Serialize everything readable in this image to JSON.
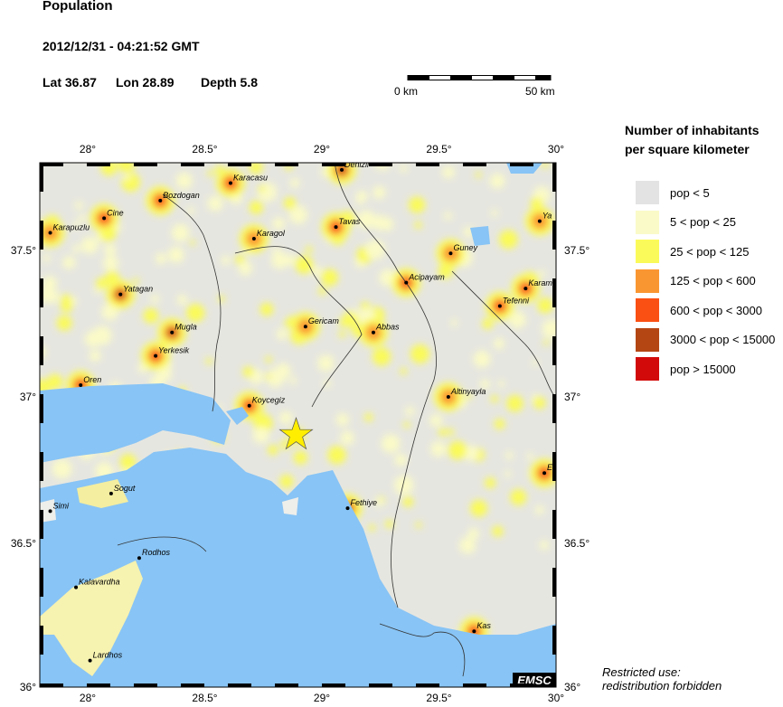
{
  "header": {
    "title": "Population",
    "datetime": "2012/12/31 - 04:21:52 GMT",
    "lat_label": "Lat 36.87",
    "lon_label": "Lon  28.89",
    "depth_label": "Depth  5.8"
  },
  "scale_bar": {
    "start": "0 km",
    "end": "50 km"
  },
  "map": {
    "lon_range": [
      27.8,
      30.0
    ],
    "lat_range": [
      36.0,
      37.8
    ],
    "lon_ticks": [
      {
        "v": 28,
        "t": "28°"
      },
      {
        "v": 28.5,
        "t": "28.5°"
      },
      {
        "v": 29,
        "t": "29°"
      },
      {
        "v": 29.5,
        "t": "29.5°"
      },
      {
        "v": 30,
        "t": "30°"
      }
    ],
    "lat_ticks": [
      {
        "v": 37.5,
        "t": "37.5°"
      },
      {
        "v": 37,
        "t": "37°"
      },
      {
        "v": 36.5,
        "t": "36.5°"
      },
      {
        "v": 36,
        "t": "36°"
      }
    ],
    "epicenter": {
      "lon": 28.89,
      "lat": 36.87,
      "icon": "star-icon",
      "color": "#ffee00"
    },
    "sea_color": "#88c4f5",
    "land_color": "#e6e6e0",
    "cities": [
      {
        "name": "Denizli",
        "lon": 29.085,
        "lat": 37.775,
        "density": "high"
      },
      {
        "name": "Karacasu",
        "lon": 28.61,
        "lat": 37.73,
        "density": "mid"
      },
      {
        "name": "Bozdogan",
        "lon": 28.31,
        "lat": 37.67,
        "density": "mid"
      },
      {
        "name": "Cine",
        "lon": 28.07,
        "lat": 37.61,
        "density": "mid"
      },
      {
        "name": "Karapuzlu",
        "lon": 27.84,
        "lat": 37.56,
        "density": "low"
      },
      {
        "name": "Tavas",
        "lon": 29.06,
        "lat": 37.58,
        "density": "mid"
      },
      {
        "name": "Karagol",
        "lon": 28.71,
        "lat": 37.54,
        "density": "low"
      },
      {
        "name": "Guney",
        "lon": 29.55,
        "lat": 37.49,
        "density": "low"
      },
      {
        "name": "Ya",
        "lon": 29.93,
        "lat": 37.6,
        "density": "low"
      },
      {
        "name": "Acipayam",
        "lon": 29.36,
        "lat": 37.39,
        "density": "mid"
      },
      {
        "name": "Karamar",
        "lon": 29.87,
        "lat": 37.37,
        "density": "mid"
      },
      {
        "name": "Tefenni",
        "lon": 29.76,
        "lat": 37.31,
        "density": "mid"
      },
      {
        "name": "Yatagan",
        "lon": 28.14,
        "lat": 37.35,
        "density": "high"
      },
      {
        "name": "Mugla",
        "lon": 28.36,
        "lat": 37.22,
        "density": "high"
      },
      {
        "name": "Gericam",
        "lon": 28.93,
        "lat": 37.24,
        "density": "low"
      },
      {
        "name": "Abbas",
        "lon": 29.22,
        "lat": 37.22,
        "density": "low"
      },
      {
        "name": "Yerkesik",
        "lon": 28.29,
        "lat": 37.14,
        "density": "mid"
      },
      {
        "name": "Oren",
        "lon": 27.97,
        "lat": 37.04,
        "density": "mid"
      },
      {
        "name": "Altinyayla",
        "lon": 29.54,
        "lat": 37.0,
        "density": "low"
      },
      {
        "name": "Koycegiz",
        "lon": 28.69,
        "lat": 36.97,
        "density": "mid"
      },
      {
        "name": "Elma",
        "lon": 29.95,
        "lat": 36.74,
        "density": "mid"
      },
      {
        "name": "Simi",
        "lon": 27.84,
        "lat": 36.61,
        "density": "low"
      },
      {
        "name": "Sogut",
        "lon": 28.1,
        "lat": 36.67,
        "density": "mid"
      },
      {
        "name": "Fethiye",
        "lon": 29.11,
        "lat": 36.62,
        "density": "high"
      },
      {
        "name": "Rodhos",
        "lon": 28.22,
        "lat": 36.45,
        "density": "high"
      },
      {
        "name": "Kalavardha",
        "lon": 27.95,
        "lat": 36.35,
        "density": "low"
      },
      {
        "name": "Kas",
        "lon": 29.65,
        "lat": 36.2,
        "density": "mid"
      },
      {
        "name": "Lardhos",
        "lon": 28.01,
        "lat": 36.1,
        "density": "mid"
      }
    ],
    "watermark": "EMSC"
  },
  "legend": {
    "title_line1": "Number of inhabitants",
    "title_line2": "per square kilometer",
    "items": [
      {
        "label": "pop < 5",
        "color": "#e3e3e3"
      },
      {
        "label": "5 < pop < 25",
        "color": "#fafac8"
      },
      {
        "label": "25 < pop < 125",
        "color": "#fafa5a"
      },
      {
        "label": "125 < pop < 600",
        "color": "#fa9632"
      },
      {
        "label": "600 < pop < 3000",
        "color": "#fa5014"
      },
      {
        "label": "3000 < pop < 15000",
        "color": "#b44614"
      },
      {
        "label": "pop > 15000",
        "color": "#d20a0a"
      }
    ]
  },
  "note": {
    "line1": "Restricted use:",
    "line2": "redistribution forbidden"
  }
}
